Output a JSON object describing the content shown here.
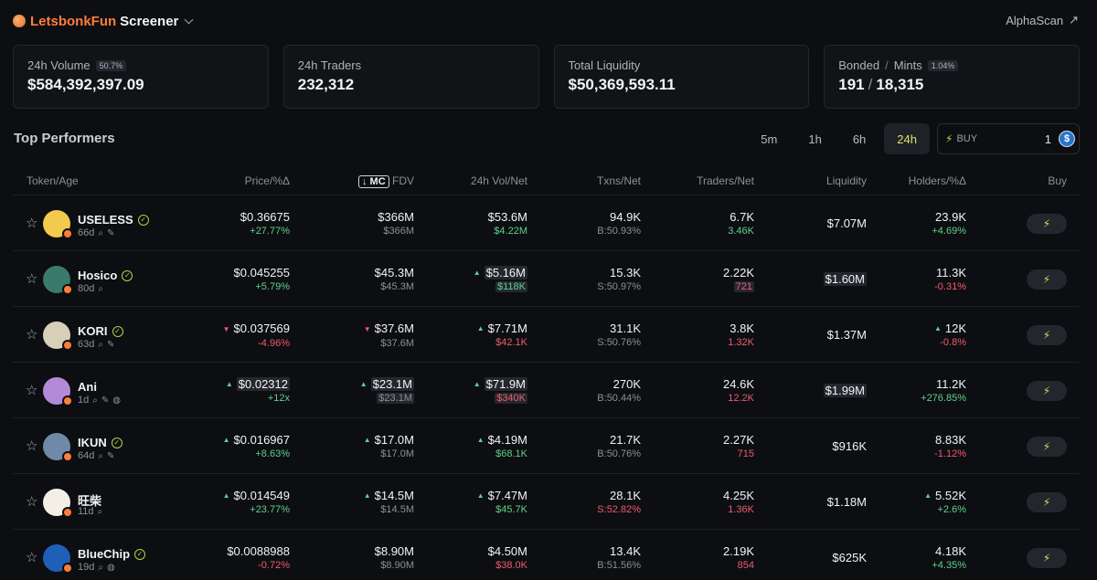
{
  "header": {
    "brand": "LetsbonkFun",
    "title": "Screener",
    "alpha_link": "AlphaScan"
  },
  "stats": [
    {
      "label": "24h Volume",
      "badge": "50.7%",
      "value": "$584,392,397.09"
    },
    {
      "label": "24h Traders",
      "value": "232,312"
    },
    {
      "label": "Total Liquidity",
      "value": "$50,369,593.11"
    },
    {
      "label": "Bonded",
      "label2": "Mints",
      "badge": "1.04%",
      "value": "191",
      "value2": "18,315"
    }
  ],
  "section_title": "Top Performers",
  "timeframes": [
    "5m",
    "1h",
    "6h",
    "24h"
  ],
  "active_timeframe": "24h",
  "buy_box": {
    "label": "BUY",
    "amount": "1",
    "token_icon": "usdc-icon"
  },
  "columns": {
    "token": "Token/Age",
    "price": "Price/%Δ",
    "mc": "MC",
    "fdv": "FDV",
    "vol": "24h Vol/Net",
    "txns": "Txns/Net",
    "traders": "Traders/Net",
    "liq": "Liquidity",
    "holders": "Holders/%Δ",
    "buy": "Buy"
  },
  "rows": [
    {
      "name": "USELESS",
      "age": "66d",
      "verified": true,
      "avatar_color": "#f3c94e",
      "price": "$0.36675",
      "price_chg": "+27.77%",
      "mc": "$366M",
      "fdv": "$366M",
      "vol": "$53.6M",
      "vol_net": "$4.22M",
      "txns": "94.9K",
      "txns_net": "B:50.93%",
      "traders": "6.7K",
      "traders_net": "3.46K",
      "liq": "$7.07M",
      "holders": "23.9K",
      "holders_chg": "+4.69%"
    },
    {
      "name": "Hosico",
      "age": "80d",
      "verified": true,
      "avatar_color": "#3a7a6a",
      "price": "$0.045255",
      "price_chg": "+5.79%",
      "mc": "$45.3M",
      "fdv": "$45.3M",
      "vol": "$5.16M",
      "vol_net": "$118K",
      "txns": "15.3K",
      "txns_net": "S:50.97%",
      "traders": "2.22K",
      "traders_net": "721",
      "liq": "$1.60M",
      "holders": "11.3K",
      "holders_chg": "-0.31%"
    },
    {
      "name": "KORI",
      "age": "63d",
      "verified": true,
      "avatar_color": "#d8cfb8",
      "price": "$0.037569",
      "price_chg": "-4.96%",
      "mc": "$37.6M",
      "fdv": "$37.6M",
      "vol": "$7.71M",
      "vol_net": "$42.1K",
      "txns": "31.1K",
      "txns_net": "S:50.76%",
      "traders": "3.8K",
      "traders_net": "1.32K",
      "liq": "$1.37M",
      "holders": "12K",
      "holders_chg": "-0.8%"
    },
    {
      "name": "Ani",
      "age": "1d",
      "verified": false,
      "avatar_color": "#b48ad8",
      "price": "$0.02312",
      "price_chg": "+12x",
      "mc": "$23.1M",
      "fdv": "$23.1M",
      "vol": "$71.9M",
      "vol_net": "$340K",
      "txns": "270K",
      "txns_net": "B:50.44%",
      "traders": "24.6K",
      "traders_net": "12.2K",
      "liq": "$1.99M",
      "holders": "11.2K",
      "holders_chg": "+276.85%"
    },
    {
      "name": "IKUN",
      "age": "64d",
      "verified": true,
      "avatar_color": "#6f8aa8",
      "price": "$0.016967",
      "price_chg": "+8.63%",
      "mc": "$17.0M",
      "fdv": "$17.0M",
      "vol": "$4.19M",
      "vol_net": "$68.1K",
      "txns": "21.7K",
      "txns_net": "B:50.76%",
      "traders": "2.27K",
      "traders_net": "715",
      "liq": "$916K",
      "holders": "8.83K",
      "holders_chg": "-1.12%"
    },
    {
      "name": "旺柴",
      "age": "11d",
      "verified": false,
      "avatar_color": "#f4efe6",
      "price": "$0.014549",
      "price_chg": "+23.77%",
      "mc": "$14.5M",
      "fdv": "$14.5M",
      "vol": "$7.47M",
      "vol_net": "$45.7K",
      "txns": "28.1K",
      "txns_net": "S:52.82%",
      "traders": "4.25K",
      "traders_net": "1.36K",
      "liq": "$1.18M",
      "holders": "5.52K",
      "holders_chg": "+2.6%"
    },
    {
      "name": "BlueChip",
      "age": "19d",
      "verified": true,
      "avatar_color": "#1f5fb8",
      "price": "$0.0088988",
      "price_chg": "-0.72%",
      "mc": "$8.90M",
      "fdv": "$8.90M",
      "vol": "$4.50M",
      "vol_net": "$38.0K",
      "txns": "13.4K",
      "txns_net": "B:51.56%",
      "traders": "2.19K",
      "traders_net": "854",
      "liq": "$625K",
      "holders": "4.18K",
      "holders_chg": "+4.35%"
    }
  ]
}
